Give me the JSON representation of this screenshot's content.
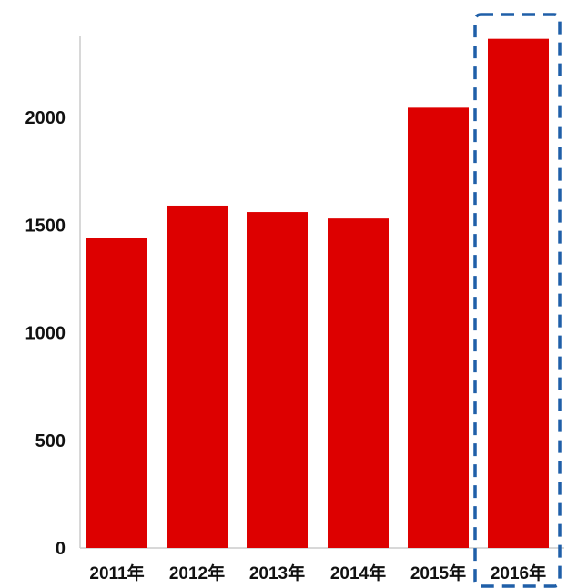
{
  "chart_data": {
    "type": "bar",
    "categories": [
      "2011年",
      "2012年",
      "2013年",
      "2014年",
      "2015年",
      "2016年"
    ],
    "values": [
      1440,
      1590,
      1560,
      1530,
      2045,
      2365
    ],
    "title": "",
    "xlabel": "",
    "ylabel": "",
    "ylim": [
      0,
      2450
    ],
    "yticks": [
      "0",
      "500",
      "1000",
      "1500",
      "2000"
    ],
    "grid": false,
    "highlight_category": "2016年",
    "colors": {
      "bar": "#dd0000",
      "highlight_box": "#1f5fa8",
      "axis": "#cccccc"
    }
  }
}
